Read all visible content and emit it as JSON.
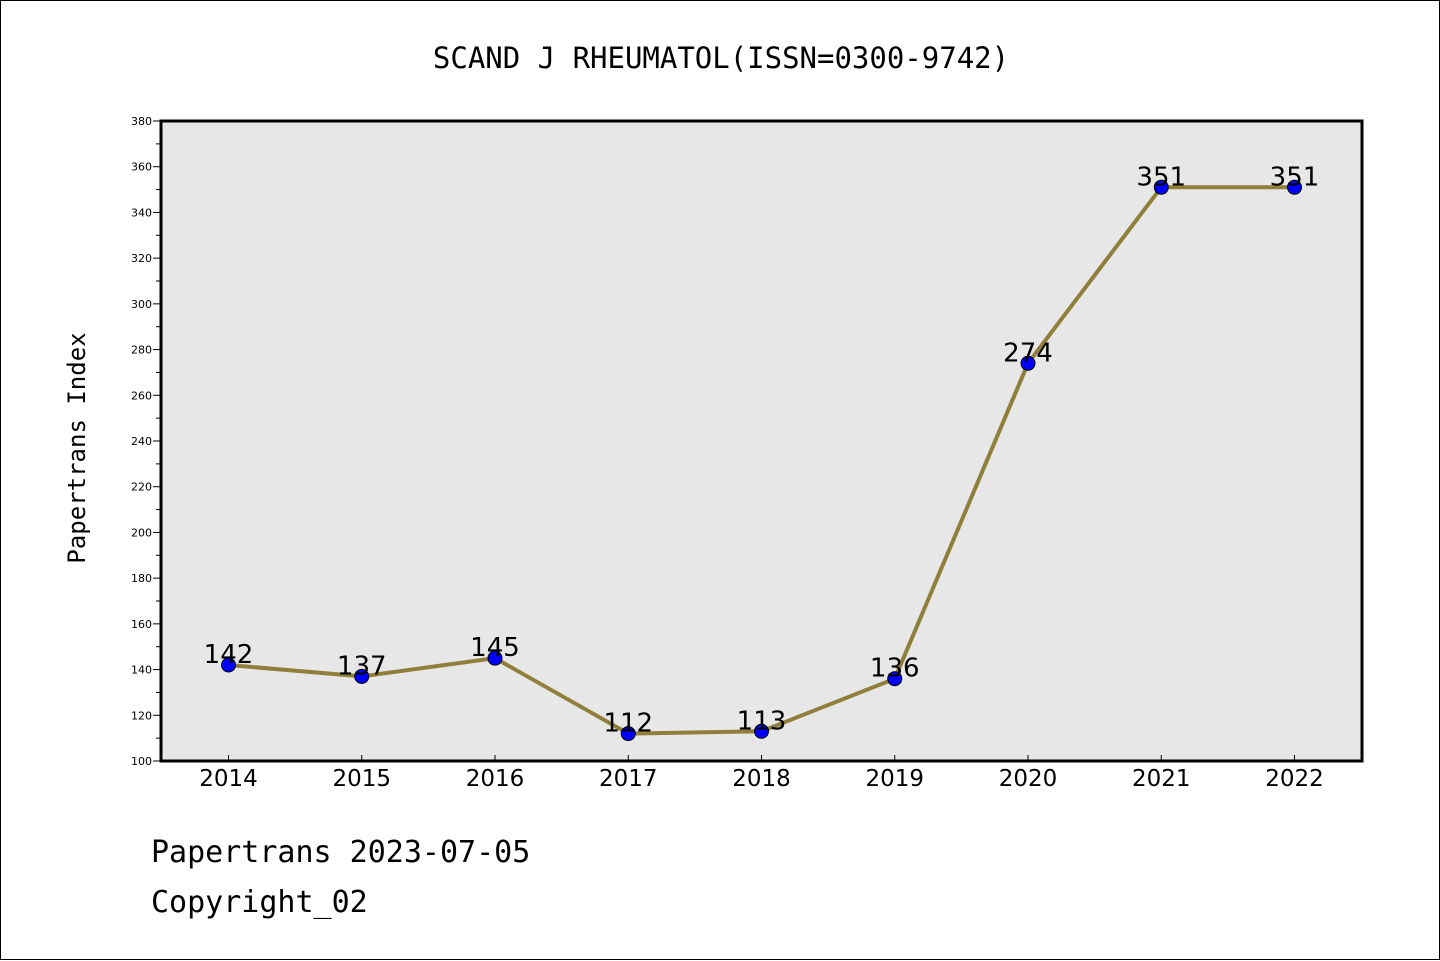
{
  "chart_data": {
    "type": "line",
    "title": "SCAND J RHEUMATOL(ISSN=0300-9742)",
    "xlabel": "",
    "ylabel": "Papertrans Index",
    "categories": [
      "2014",
      "2015",
      "2016",
      "2017",
      "2018",
      "2019",
      "2020",
      "2021",
      "2022"
    ],
    "series": [
      {
        "values": [
          142,
          137,
          145,
          112,
          113,
          136,
          274,
          351,
          351
        ]
      }
    ],
    "data_labels": [
      "142",
      "137",
      "145",
      "112",
      "113",
      "136",
      "274",
      "351",
      "351"
    ],
    "ylim": [
      100,
      380
    ],
    "y_major_ticks": [
      100,
      120,
      140,
      160,
      180,
      200,
      220,
      240,
      260,
      280,
      300,
      320,
      340,
      360,
      380
    ],
    "y_tick_labels": [
      "100",
      "120",
      "140",
      "160",
      "180",
      "200",
      "220",
      "240",
      "260",
      "280",
      "300",
      "320",
      "340",
      "360",
      "380"
    ],
    "y_minor_step": 10,
    "grid": false,
    "legend": "none",
    "colors": {
      "plot_background": "#e7e7e7",
      "line": "#8f7f3a",
      "marker": "#0000ff",
      "marker_edge": "#000000"
    }
  },
  "footer": {
    "date_line": "Papertrans 2023-07-05",
    "copyright_line": "Copyright_02"
  }
}
